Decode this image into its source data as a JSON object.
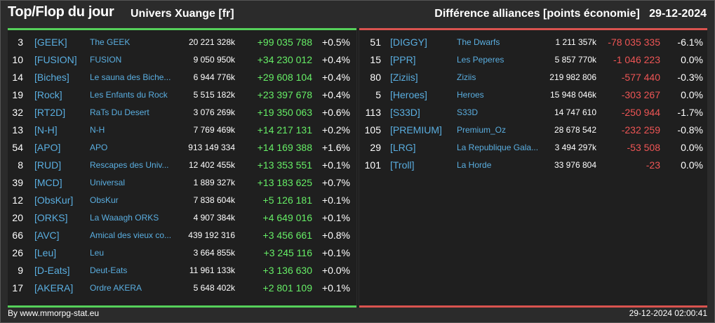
{
  "header": {
    "title": "Top/Flop du jour",
    "subtitle": "Univers Xuange [fr]",
    "right": "Différence alliances [points économie]   29-12-2024"
  },
  "colors": {
    "positive": "#66ee66",
    "negative": "#ee5555",
    "link": "#5aaee0",
    "top_bar": "#55d05a",
    "flop_bar": "#d9534f"
  },
  "top": [
    {
      "rank": "3",
      "tag": "[GEEK]",
      "name": "The GEEK",
      "points": "20 221 328k",
      "diff": "+99 035 788",
      "pct": "+0.5%"
    },
    {
      "rank": "10",
      "tag": "[FUSION]",
      "name": "FUSION",
      "points": "9 050 950k",
      "diff": "+34 230 012",
      "pct": "+0.4%"
    },
    {
      "rank": "14",
      "tag": "[Biches]",
      "name": "Le sauna des Biche...",
      "points": "6 944 776k",
      "diff": "+29 608 104",
      "pct": "+0.4%"
    },
    {
      "rank": "19",
      "tag": "[Rock]",
      "name": "Les Enfants du Rock",
      "points": "5 515 182k",
      "diff": "+23 397 678",
      "pct": "+0.4%"
    },
    {
      "rank": "32",
      "tag": "[RT2D]",
      "name": "RaTs Du Desert",
      "points": "3 076 269k",
      "diff": "+19 350 063",
      "pct": "+0.6%"
    },
    {
      "rank": "13",
      "tag": "[N-H]",
      "name": "N-H",
      "points": "7 769 469k",
      "diff": "+14 217 131",
      "pct": "+0.2%"
    },
    {
      "rank": "54",
      "tag": "[APO]",
      "name": "APO",
      "points": "913 149 334",
      "diff": "+14 169 388",
      "pct": "+1.6%"
    },
    {
      "rank": "8",
      "tag": "[RUD]",
      "name": "Rescapes des Univ...",
      "points": "12 402 455k",
      "diff": "+13 353 551",
      "pct": "+0.1%"
    },
    {
      "rank": "39",
      "tag": "[MCD]",
      "name": "Universal",
      "points": "1 889 327k",
      "diff": "+13 183 625",
      "pct": "+0.7%"
    },
    {
      "rank": "12",
      "tag": "[ObsKur]",
      "name": "ObsKur",
      "points": "7 838 604k",
      "diff": "+5 126 181",
      "pct": "+0.1%"
    },
    {
      "rank": "20",
      "tag": "[ORKS]",
      "name": "La Waaagh ORKS",
      "points": "4 907 384k",
      "diff": "+4 649 016",
      "pct": "+0.1%"
    },
    {
      "rank": "66",
      "tag": "[AVC]",
      "name": "Amical des vieux co...",
      "points": "439 192 316",
      "diff": "+3 456 661",
      "pct": "+0.8%"
    },
    {
      "rank": "26",
      "tag": "[Leu]",
      "name": "Leu",
      "points": "3 664 855k",
      "diff": "+3 245 116",
      "pct": "+0.1%"
    },
    {
      "rank": "9",
      "tag": "[D-Eats]",
      "name": "Deut-Eats",
      "points": "11 961 133k",
      "diff": "+3 136 630",
      "pct": "+0.0%"
    },
    {
      "rank": "17",
      "tag": "[AKERA]",
      "name": "Ordre AKERA",
      "points": "5 648 402k",
      "diff": "+2 801 109",
      "pct": "+0.1%"
    }
  ],
  "flop": [
    {
      "rank": "51",
      "tag": "[DIGGY]",
      "name": "The Dwarfs",
      "points": "1 211 357k",
      "diff": "-78 035 335",
      "pct": "-6.1%"
    },
    {
      "rank": "15",
      "tag": "[PPR]",
      "name": "Les Peperes",
      "points": "5 857 770k",
      "diff": "-1 046 223",
      "pct": "0.0%"
    },
    {
      "rank": "80",
      "tag": "[Ziziis]",
      "name": "Ziziis",
      "points": "219 982 806",
      "diff": "-577 440",
      "pct": "-0.3%"
    },
    {
      "rank": "5",
      "tag": "[Heroes]",
      "name": "Heroes",
      "points": "15 948 046k",
      "diff": "-303 267",
      "pct": "0.0%"
    },
    {
      "rank": "113",
      "tag": "[S33D]",
      "name": "S33D",
      "points": "14 747 610",
      "diff": "-250 944",
      "pct": "-1.7%"
    },
    {
      "rank": "105",
      "tag": "[PREMIUM]",
      "name": "Premium_Oz",
      "points": "28 678 542",
      "diff": "-232 259",
      "pct": "-0.8%"
    },
    {
      "rank": "29",
      "tag": "[LRG]",
      "name": "La Republique Gala...",
      "points": "3 494 297k",
      "diff": "-53 508",
      "pct": "0.0%"
    },
    {
      "rank": "101",
      "tag": "[Troll]",
      "name": "La Horde",
      "points": "33 976 804",
      "diff": "-23",
      "pct": "0.0%"
    }
  ],
  "footer": {
    "left": "By www.mmorpg-stat.eu",
    "right": "29-12-2024 02:00:41"
  }
}
